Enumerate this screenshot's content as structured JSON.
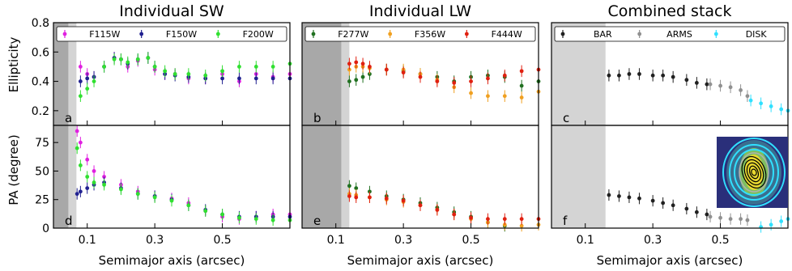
{
  "figure": {
    "ylabel_top": "Ellipticity",
    "ylabel_bottom": "PA (degree)"
  },
  "chart_data": [
    {
      "type": "scatter",
      "title": "Individual SW",
      "xlabel": "Semimajor axis (arcsec)",
      "xlim": [
        0,
        0.7
      ],
      "xticks": [
        "0.1",
        "0.3",
        "0.5"
      ],
      "xtick_values": [
        0.1,
        0.3,
        0.5
      ],
      "ylabel": "Ellipticity",
      "ylim": [
        0.1,
        0.8
      ],
      "yticks": [
        "0.2",
        "0.4",
        "0.6",
        "0.8"
      ],
      "ytick_values": [
        0.2,
        0.4,
        0.6,
        0.8
      ],
      "panel_letter": "a",
      "legend": "top",
      "series": [
        {
          "name": "F115W",
          "color": "#e020e0",
          "x": [
            0.08,
            0.1,
            0.12,
            0.15,
            0.18,
            0.2,
            0.22,
            0.25,
            0.28,
            0.3,
            0.33,
            0.36,
            0.4,
            0.45,
            0.5,
            0.55,
            0.6,
            0.65,
            0.7
          ],
          "y": [
            0.5,
            0.45,
            0.43,
            0.5,
            0.56,
            0.55,
            0.5,
            0.54,
            0.56,
            0.48,
            0.45,
            0.45,
            0.42,
            0.42,
            0.45,
            0.4,
            0.45,
            0.43,
            0.45
          ]
        },
        {
          "name": "F150W",
          "color": "#202090",
          "x": [
            0.08,
            0.1,
            0.12,
            0.15,
            0.18,
            0.2,
            0.22,
            0.25,
            0.28,
            0.3,
            0.33,
            0.36,
            0.4,
            0.45,
            0.5,
            0.55,
            0.6,
            0.65,
            0.7
          ],
          "y": [
            0.4,
            0.42,
            0.43,
            0.5,
            0.56,
            0.55,
            0.52,
            0.55,
            0.56,
            0.5,
            0.45,
            0.44,
            0.43,
            0.42,
            0.42,
            0.42,
            0.42,
            0.42,
            0.42
          ]
        },
        {
          "name": "F200W",
          "color": "#30e030",
          "x": [
            0.08,
            0.1,
            0.12,
            0.15,
            0.18,
            0.2,
            0.22,
            0.25,
            0.28,
            0.3,
            0.33,
            0.36,
            0.4,
            0.45,
            0.5,
            0.55,
            0.6,
            0.65,
            0.7
          ],
          "y": [
            0.3,
            0.35,
            0.4,
            0.5,
            0.55,
            0.55,
            0.53,
            0.55,
            0.56,
            0.5,
            0.47,
            0.45,
            0.45,
            0.44,
            0.47,
            0.5,
            0.5,
            0.5,
            0.52
          ]
        }
      ]
    },
    {
      "type": "scatter",
      "title": "Individual LW",
      "xlabel": "Semimajor axis (arcsec)",
      "xlim": [
        0,
        0.7
      ],
      "xticks": [
        "0.1",
        "0.3",
        "0.5"
      ],
      "xtick_values": [
        0.1,
        0.3,
        0.5
      ],
      "ylim": [
        0.1,
        0.8
      ],
      "panel_letter": "b",
      "legend": "top",
      "series": [
        {
          "name": "F277W",
          "color": "#207020",
          "x": [
            0.14,
            0.16,
            0.18,
            0.2,
            0.25,
            0.3,
            0.35,
            0.4,
            0.45,
            0.5,
            0.55,
            0.6,
            0.65,
            0.7
          ],
          "y": [
            0.4,
            0.41,
            0.43,
            0.45,
            0.48,
            0.47,
            0.45,
            0.43,
            0.4,
            0.43,
            0.44,
            0.43,
            0.37,
            0.4
          ]
        },
        {
          "name": "F356W",
          "color": "#f0a020",
          "x": [
            0.14,
            0.16,
            0.18,
            0.2,
            0.25,
            0.3,
            0.35,
            0.4,
            0.45,
            0.5,
            0.55,
            0.6,
            0.65,
            0.7
          ],
          "y": [
            0.48,
            0.5,
            0.5,
            0.49,
            0.48,
            0.48,
            0.45,
            0.41,
            0.36,
            0.32,
            0.3,
            0.3,
            0.29,
            0.33
          ]
        },
        {
          "name": "F444W",
          "color": "#e02010",
          "x": [
            0.14,
            0.16,
            0.18,
            0.2,
            0.25,
            0.3,
            0.35,
            0.4,
            0.45,
            0.5,
            0.55,
            0.6,
            0.65,
            0.7
          ],
          "y": [
            0.52,
            0.53,
            0.52,
            0.5,
            0.48,
            0.46,
            0.43,
            0.4,
            0.39,
            0.4,
            0.42,
            0.44,
            0.47,
            0.48
          ]
        }
      ]
    },
    {
      "type": "scatter",
      "title": "Combined stack",
      "xlabel": "Semimajor axis (arcsec)",
      "xlim": [
        0,
        0.7
      ],
      "xticks": [
        "0.1",
        "0.3",
        "0.5"
      ],
      "xtick_values": [
        0.1,
        0.3,
        0.5
      ],
      "ylim": [
        0.1,
        0.8
      ],
      "panel_letter": "c",
      "legend": "top",
      "series": [
        {
          "name": "BAR",
          "color": "#202020",
          "x": [
            0.17,
            0.2,
            0.23,
            0.26,
            0.3,
            0.33,
            0.36,
            0.4,
            0.43,
            0.46
          ],
          "y": [
            0.44,
            0.44,
            0.45,
            0.45,
            0.44,
            0.44,
            0.43,
            0.41,
            0.39,
            0.38
          ]
        },
        {
          "name": "ARMS",
          "color": "#909090",
          "x": [
            0.47,
            0.5,
            0.53,
            0.56,
            0.58
          ],
          "y": [
            0.38,
            0.37,
            0.36,
            0.34,
            0.3
          ]
        },
        {
          "name": "DISK",
          "color": "#30e0ff",
          "x": [
            0.59,
            0.62,
            0.65,
            0.68,
            0.7
          ],
          "y": [
            0.27,
            0.25,
            0.23,
            0.21,
            0.2
          ]
        }
      ]
    },
    {
      "type": "scatter",
      "xlabel": "Semimajor axis (arcsec)",
      "xlim": [
        0,
        0.7
      ],
      "xticks": [
        "0.1",
        "0.3",
        "0.5"
      ],
      "xtick_values": [
        0.1,
        0.3,
        0.5
      ],
      "ylabel": "PA (degree)",
      "ylim": [
        0,
        90
      ],
      "yticks": [
        "0",
        "25",
        "50",
        "75"
      ],
      "ytick_values": [
        0,
        25,
        50,
        75
      ],
      "panel_letter": "d",
      "series": [
        {
          "name": "F115W",
          "color": "#e020e0",
          "x": [
            0.07,
            0.08,
            0.1,
            0.12,
            0.15,
            0.2,
            0.25,
            0.3,
            0.35,
            0.4,
            0.45,
            0.5,
            0.55,
            0.6,
            0.65,
            0.7
          ],
          "y": [
            85,
            75,
            60,
            50,
            45,
            38,
            32,
            28,
            26,
            22,
            15,
            10,
            8,
            10,
            12,
            12
          ]
        },
        {
          "name": "F150W",
          "color": "#202090",
          "x": [
            0.07,
            0.08,
            0.1,
            0.12,
            0.15,
            0.2,
            0.25,
            0.3,
            0.35,
            0.4,
            0.45,
            0.5,
            0.55,
            0.6,
            0.65,
            0.7
          ],
          "y": [
            30,
            32,
            35,
            38,
            40,
            35,
            30,
            28,
            25,
            20,
            16,
            12,
            10,
            10,
            10,
            10
          ]
        },
        {
          "name": "F200W",
          "color": "#30e030",
          "x": [
            0.07,
            0.08,
            0.1,
            0.12,
            0.15,
            0.2,
            0.25,
            0.3,
            0.35,
            0.4,
            0.45,
            0.5,
            0.55,
            0.6,
            0.65,
            0.7
          ],
          "y": [
            70,
            55,
            45,
            40,
            38,
            34,
            30,
            27,
            24,
            20,
            15,
            12,
            9,
            8,
            7,
            7
          ]
        }
      ]
    },
    {
      "type": "scatter",
      "xlabel": "Semimajor axis (arcsec)",
      "xlim": [
        0,
        0.7
      ],
      "xticks": [
        "0.1",
        "0.3",
        "0.5"
      ],
      "xtick_values": [
        0.1,
        0.3,
        0.5
      ],
      "ylim": [
        0,
        90
      ],
      "panel_letter": "e",
      "series": [
        {
          "name": "F277W",
          "color": "#207020",
          "x": [
            0.14,
            0.16,
            0.2,
            0.25,
            0.3,
            0.35,
            0.4,
            0.45,
            0.5,
            0.55,
            0.6
          ],
          "y": [
            37,
            35,
            32,
            28,
            25,
            22,
            18,
            14,
            10,
            5,
            2
          ]
        },
        {
          "name": "F356W",
          "color": "#f0a020",
          "x": [
            0.14,
            0.16,
            0.2,
            0.25,
            0.3,
            0.35,
            0.4,
            0.45,
            0.5,
            0.55,
            0.6,
            0.65,
            0.7
          ],
          "y": [
            30,
            29,
            27,
            25,
            23,
            20,
            16,
            12,
            8,
            5,
            3,
            2,
            3
          ]
        },
        {
          "name": "F444W",
          "color": "#e02010",
          "x": [
            0.14,
            0.16,
            0.2,
            0.25,
            0.3,
            0.35,
            0.4,
            0.45,
            0.5,
            0.55,
            0.6,
            0.65,
            0.7
          ],
          "y": [
            28,
            27,
            27,
            26,
            24,
            20,
            16,
            12,
            9,
            8,
            8,
            8,
            8
          ]
        }
      ]
    },
    {
      "type": "scatter",
      "xlabel": "Semimajor axis (arcsec)",
      "xlim": [
        0,
        0.7
      ],
      "xticks": [
        "0.1",
        "0.3",
        "0.5"
      ],
      "xtick_values": [
        0.1,
        0.3,
        0.5
      ],
      "ylim": [
        0,
        90
      ],
      "panel_letter": "f",
      "series": [
        {
          "name": "BAR",
          "color": "#202020",
          "x": [
            0.17,
            0.2,
            0.23,
            0.26,
            0.3,
            0.33,
            0.36,
            0.4,
            0.43,
            0.46
          ],
          "y": [
            29,
            28,
            27,
            26,
            24,
            22,
            20,
            17,
            14,
            12
          ]
        },
        {
          "name": "ARMS",
          "color": "#909090",
          "x": [
            0.47,
            0.5,
            0.53,
            0.56,
            0.58
          ],
          "y": [
            10,
            9,
            8,
            8,
            7
          ]
        },
        {
          "name": "DISK",
          "color": "#30e0ff",
          "x": [
            0.62,
            0.65,
            0.68,
            0.7
          ],
          "y": [
            1,
            3,
            6,
            8
          ]
        }
      ]
    }
  ]
}
